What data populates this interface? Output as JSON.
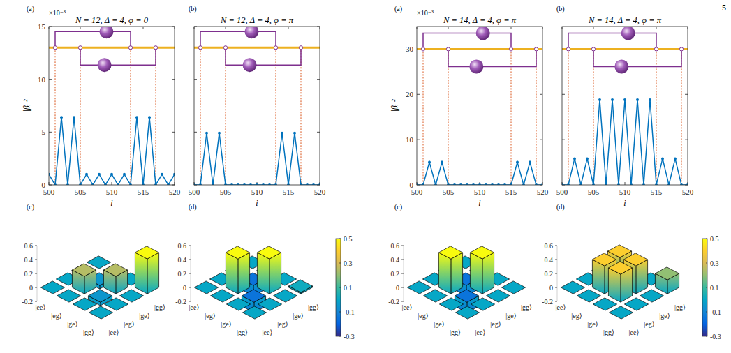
{
  "page_number": "5",
  "chart_data": [
    {
      "panel": "(a)",
      "type": "line",
      "title": "N = 12, Δ = 4, φ = 0",
      "y_multiplier": "×10⁻³",
      "x_label": "i",
      "y_label": "|βᵢ|²",
      "x": [
        500,
        501,
        502,
        503,
        504,
        505,
        506,
        507,
        508,
        509,
        510,
        511,
        512,
        513,
        514,
        515,
        516,
        517,
        518,
        519,
        520
      ],
      "values": [
        1.0,
        0,
        6.4,
        0,
        6.4,
        0,
        1.0,
        0,
        1.0,
        0,
        1.0,
        0,
        1.0,
        0,
        6.4,
        0,
        6.4,
        0,
        1.0,
        0,
        1.0
      ],
      "color": "#0072bd",
      "marker": "circle",
      "xlim": [
        500,
        520
      ],
      "ylim": [
        0,
        15
      ],
      "xticks": [
        500,
        505,
        510,
        515,
        520
      ],
      "yticks": [
        0,
        5,
        10,
        15
      ],
      "waveguide_level": 13,
      "atoms": [
        [
          501,
          513
        ],
        [
          505,
          517
        ]
      ]
    },
    {
      "panel": "(b)",
      "type": "line",
      "title": "N = 12, Δ = 4, φ = π",
      "x_label": "i",
      "tick_labels": "x",
      "x": [
        500,
        501,
        502,
        503,
        504,
        505,
        506,
        507,
        508,
        509,
        510,
        511,
        512,
        513,
        514,
        515,
        516,
        517,
        518,
        519,
        520
      ],
      "values": [
        0,
        0,
        4.9,
        0,
        4.9,
        0,
        0,
        0,
        0,
        0,
        0,
        0,
        0,
        0,
        4.9,
        0,
        4.9,
        0,
        0,
        0,
        0
      ],
      "color": "#0072bd",
      "marker": "circle",
      "xlim": [
        500,
        520
      ],
      "ylim": [
        0,
        15
      ],
      "xticks": [
        500,
        505,
        510,
        515,
        520
      ],
      "yticks": [
        0,
        5,
        10,
        15
      ],
      "waveguide_level": 13,
      "atoms": [
        [
          501,
          513
        ],
        [
          505,
          517
        ]
      ]
    },
    {
      "panel": "(a)",
      "type": "line",
      "title": "N = 14, Δ = 4, φ = π",
      "y_multiplier": "×10⁻³",
      "x_label": "i",
      "y_label": "|βᵢ|²",
      "x": [
        500,
        501,
        502,
        503,
        504,
        505,
        506,
        507,
        508,
        509,
        510,
        511,
        512,
        513,
        514,
        515,
        516,
        517,
        518,
        519,
        520
      ],
      "values": [
        0,
        0,
        5,
        0,
        5,
        0,
        0,
        0,
        0,
        0,
        0,
        0,
        0,
        0,
        0,
        0,
        5,
        0,
        5,
        0,
        0
      ],
      "color": "#0072bd",
      "marker": "circle",
      "xlim": [
        500,
        520
      ],
      "ylim": [
        0,
        35
      ],
      "xticks": [
        500,
        505,
        510,
        515,
        520
      ],
      "yticks": [
        0,
        10,
        20,
        30
      ],
      "waveguide_level": 30,
      "atoms": [
        [
          501,
          515
        ],
        [
          505,
          519
        ]
      ]
    },
    {
      "panel": "(b)",
      "type": "line",
      "title": "N = 14, Δ = 4, φ = π",
      "x_label": "i",
      "tick_labels": "x",
      "x": [
        500,
        501,
        502,
        503,
        504,
        505,
        506,
        507,
        508,
        509,
        510,
        511,
        512,
        513,
        514,
        515,
        516,
        517,
        518,
        519,
        520
      ],
      "values": [
        0,
        0,
        5.8,
        0,
        5.8,
        0,
        18.8,
        0,
        18.8,
        0,
        18.8,
        0,
        18.8,
        0,
        18.8,
        0,
        5.8,
        0,
        5.8,
        0,
        0
      ],
      "color": "#0072bd",
      "marker": "circle",
      "xlim": [
        500,
        520
      ],
      "ylim": [
        0,
        35
      ],
      "xticks": [
        500,
        505,
        510,
        515,
        520
      ],
      "yticks": [
        0,
        10,
        20,
        30
      ],
      "waveguide_level": 30,
      "atoms": [
        [
          501,
          515
        ],
        [
          505,
          519
        ]
      ]
    },
    {
      "panel": "(c)",
      "type": "bar3d",
      "row_labels": [
        "|ee⟩",
        "|eg⟩",
        "|ge⟩",
        "|gg⟩"
      ],
      "col_labels": [
        "|ee⟩",
        "|eg⟩",
        "|ge⟩",
        "|gg⟩"
      ],
      "cells": [
        [
          0,
          0,
          0,
          0
        ],
        [
          0,
          0.25,
          -0.05,
          0
        ],
        [
          0,
          -0.05,
          0.25,
          0
        ],
        [
          0,
          0,
          0,
          0.5
        ]
      ],
      "zlim": [
        -0.2,
        0.6
      ],
      "zticks": [
        -0.2,
        0,
        0.2,
        0.4,
        0.6
      ],
      "color_range": [
        -0.3,
        0.5
      ]
    },
    {
      "panel": "(d)",
      "type": "bar3d",
      "row_labels": [
        "|ee⟩",
        "|eg⟩",
        "|ge⟩",
        "|gg⟩"
      ],
      "col_labels": [
        "|ee⟩",
        "|eg⟩",
        "|ge⟩",
        "|gg⟩"
      ],
      "cells": [
        [
          0,
          0,
          0,
          0
        ],
        [
          0,
          0.5,
          -0.15,
          0
        ],
        [
          0,
          -0.15,
          0.5,
          0
        ],
        [
          0,
          0,
          0,
          0.02
        ]
      ],
      "zlim": [
        -0.2,
        0.6
      ],
      "zticks": [
        -0.2,
        0,
        0.2,
        0.4,
        0.6
      ],
      "color_range": [
        -0.3,
        0.5
      ],
      "colorbar_ticks": [
        -0.3,
        -0.1,
        0.1,
        0.3,
        0.5
      ]
    },
    {
      "panel": "(c)",
      "type": "bar3d",
      "row_labels": [
        "|ee⟩",
        "|eg⟩",
        "|ge⟩",
        "|gg⟩"
      ],
      "col_labels": [
        "|ee⟩",
        "|eg⟩",
        "|ge⟩",
        "|gg⟩"
      ],
      "cells": [
        [
          0,
          0,
          0,
          0
        ],
        [
          0,
          0.5,
          -0.15,
          0
        ],
        [
          0,
          -0.15,
          0.5,
          0
        ],
        [
          0,
          0,
          0,
          0
        ]
      ],
      "zlim": [
        -0.2,
        0.6
      ],
      "zticks": [
        -0.2,
        0,
        0.2,
        0.4,
        0.6
      ],
      "color_range": [
        -0.3,
        0.5
      ]
    },
    {
      "panel": "(d)",
      "type": "bar3d",
      "row_labels": [
        "|ee⟩",
        "|eg⟩",
        "|ge⟩",
        "|gg⟩"
      ],
      "col_labels": [
        "|ee⟩",
        "|eg⟩",
        "|ge⟩",
        "|gg⟩"
      ],
      "cells": [
        [
          0,
          0,
          0,
          0
        ],
        [
          0,
          0.4,
          0.4,
          0
        ],
        [
          0,
          0.4,
          0.4,
          0
        ],
        [
          0,
          0,
          0,
          0.2
        ]
      ],
      "zlim": [
        -0.2,
        0.6
      ],
      "zticks": [
        -0.2,
        0,
        0.2,
        0.4,
        0.6
      ],
      "color_range": [
        -0.3,
        0.5
      ],
      "colorbar_ticks": [
        -0.3,
        -0.1,
        0.1,
        0.3,
        0.5
      ]
    }
  ]
}
